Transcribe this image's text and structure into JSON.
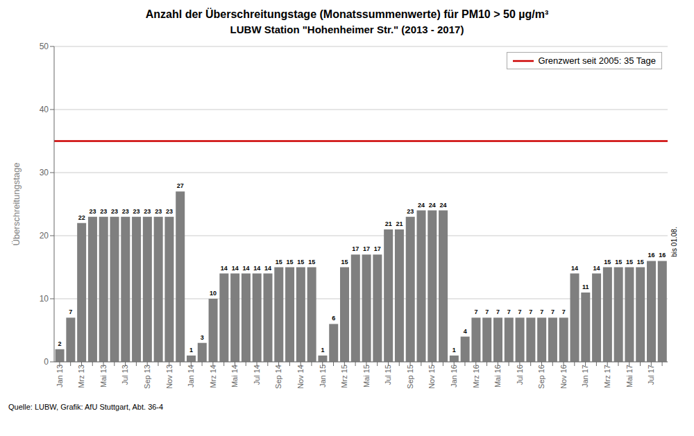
{
  "chart_data": {
    "type": "bar",
    "title": "Anzahl der Überschreitungstage (Monatssummenwerte) für PM10 > 50 µg/m³",
    "subtitle": "LUBW Station \"Hohenheimer Str.\" (2013 - 2017)",
    "y_label": "Überschreitungstage",
    "source": "Quelle: LUBW, Grafik: AfU Stuttgart, Abt. 36-4",
    "annotation": "bis 01.08.",
    "categories": [
      "Jan 13",
      null,
      "Mrz 13",
      null,
      "Mai 13",
      null,
      "Jul 13",
      null,
      "Sep 13",
      null,
      "Nov 13",
      null,
      "Jan 14",
      null,
      "Mrz 14",
      null,
      "Mai 14",
      null,
      "Jul 14",
      null,
      "Sep 14",
      null,
      "Nov 14",
      null,
      "Jan 15",
      null,
      "Mrz 15",
      null,
      "Mai 15",
      null,
      "Jul 15",
      null,
      "Sep 15",
      null,
      "Nov 15",
      null,
      "Jan 16",
      null,
      "Mrz 16",
      null,
      "Mai 16",
      null,
      "Jul 16",
      null,
      "Sep 16",
      null,
      "Nov 16",
      null,
      "Jan 17",
      null,
      "Mrz 17",
      null,
      "Mai 17",
      null,
      "Jul 17",
      null
    ],
    "values": [
      2,
      7,
      22,
      23,
      23,
      23,
      23,
      23,
      23,
      23,
      23,
      27,
      1,
      3,
      10,
      14,
      14,
      14,
      14,
      14,
      15,
      15,
      15,
      15,
      1,
      6,
      15,
      17,
      17,
      17,
      21,
      21,
      23,
      24,
      24,
      24,
      1,
      4,
      7,
      7,
      7,
      7,
      7,
      7,
      7,
      7,
      7,
      14,
      11,
      14,
      15,
      15,
      15,
      15,
      16,
      16
    ],
    "color": "#7f7f7f",
    "reference_line": {
      "value": 35,
      "label": "Grenzwert seit 2005: 35 Tage",
      "color": "#cc0000"
    },
    "ylim": [
      0,
      50
    ],
    "yticks": [
      0,
      10,
      20,
      30,
      40,
      50
    ],
    "grid": true,
    "legend": "upper right",
    "data_labels": true
  }
}
